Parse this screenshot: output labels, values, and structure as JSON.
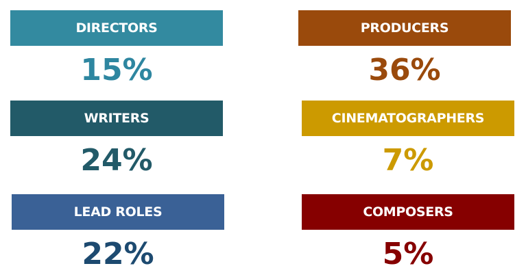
{
  "items": [
    {
      "label": "DIRECTORS",
      "value": "15%",
      "color": "#338aa0",
      "text_color": "#2e86a0"
    },
    {
      "label": "WRITERS",
      "value": "24%",
      "color": "#225a68",
      "text_color": "#225a68"
    },
    {
      "label": "LEAD ROLES",
      "value": "22%",
      "color": "#3a6196",
      "text_color": "#1d4a70"
    },
    {
      "label": "PRODUCERS",
      "value": "36%",
      "color": "#9a4a0c",
      "text_color": "#9a4a0c"
    },
    {
      "label": "CINEMATOGRAPHERS",
      "value": "7%",
      "color": "#cc9a00",
      "text_color": "#cc9a00"
    },
    {
      "label": "COMPOSERS",
      "value": "5%",
      "color": "#860000",
      "text_color": "#860000"
    }
  ]
}
